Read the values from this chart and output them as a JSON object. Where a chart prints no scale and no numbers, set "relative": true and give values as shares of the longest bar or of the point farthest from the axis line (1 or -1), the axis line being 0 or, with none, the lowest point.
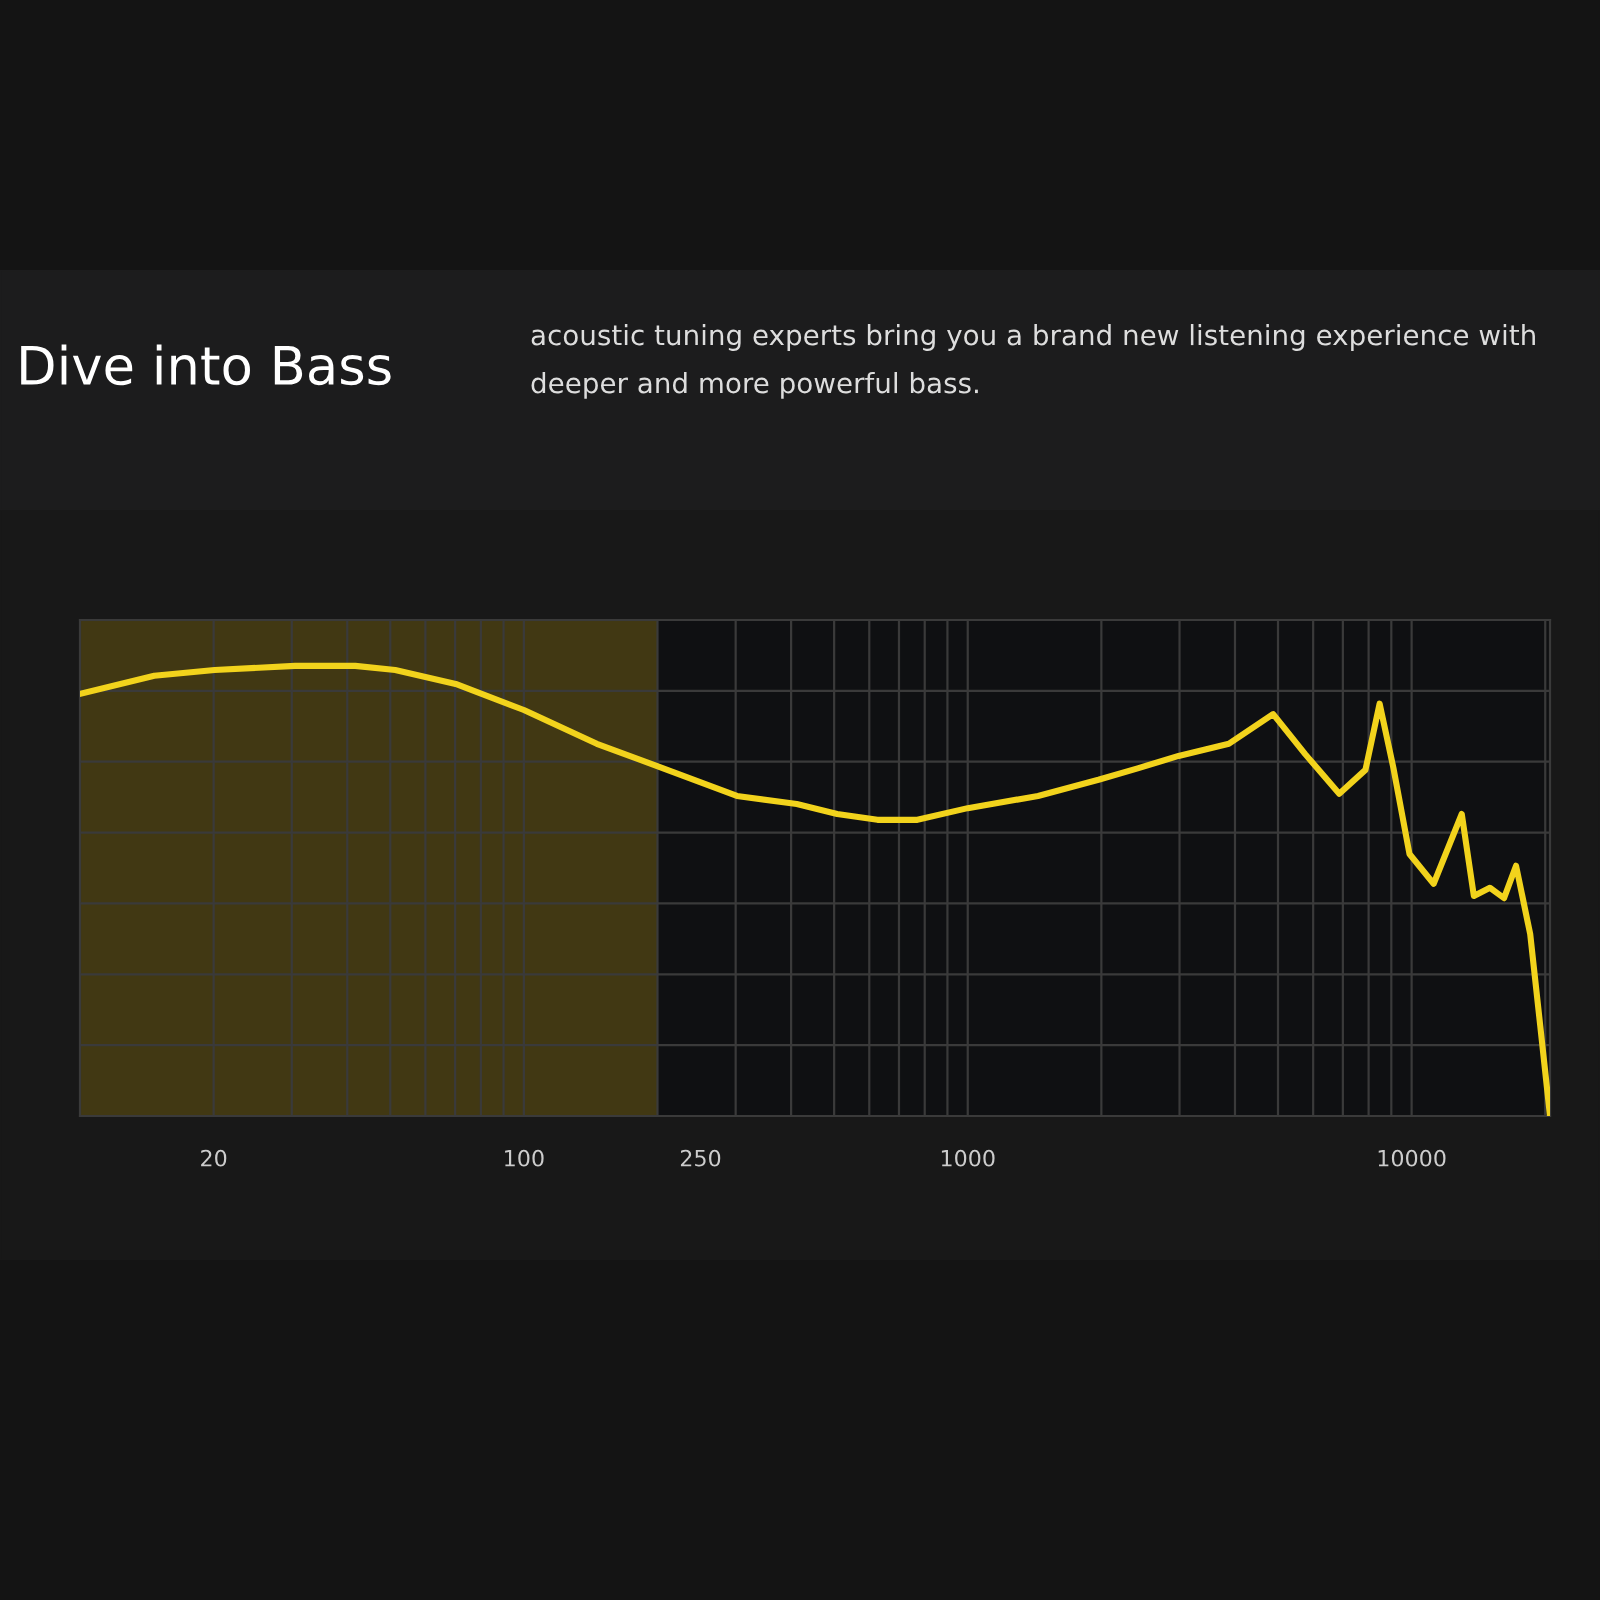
{
  "chart_data": {
    "type": "line",
    "title": "Dive into Bass",
    "subtitle": "acoustic tuning experts bring you a brand new listening experience with deeper and more powerful bass.",
    "relative": true,
    "series": [
      {
        "color": "#f2d31c",
        "x": [
          10,
          14.7,
          20.1,
          30.5,
          41.7,
          51.3,
          70.2,
          100,
          146,
          199,
          302,
          412,
          508,
          626,
          770,
          1000,
          1440,
          1970,
          2425,
          2985,
          3875,
          4876,
          5757,
          6870,
          7870,
          8470,
          9100,
          9890,
          11210,
          12970,
          13810,
          15010,
          16150,
          17190,
          18500,
          19490,
          20500
        ],
        "values": [
          0.938,
          0.978,
          0.991,
          1.0,
          1.0,
          0.991,
          0.96,
          0.902,
          0.827,
          0.778,
          0.711,
          0.693,
          0.671,
          0.658,
          0.658,
          0.684,
          0.711,
          0.747,
          0.773,
          0.8,
          0.827,
          0.893,
          0.804,
          0.716,
          0.769,
          0.916,
          0.773,
          0.582,
          0.516,
          0.671,
          0.489,
          0.507,
          0.484,
          0.556,
          0.404,
          0.2,
          0.0
        ]
      }
    ],
    "log": "x",
    "xlim": [
      10,
      20500
    ],
    "xticks": [
      20,
      100,
      250,
      1000,
      10000
    ],
    "bands": [
      {
        "axis": "x",
        "from": 10,
        "to": 200,
        "color": "#6b5a14"
      }
    ],
    "grid": true,
    "line_style": "solid",
    "marker": "none"
  }
}
